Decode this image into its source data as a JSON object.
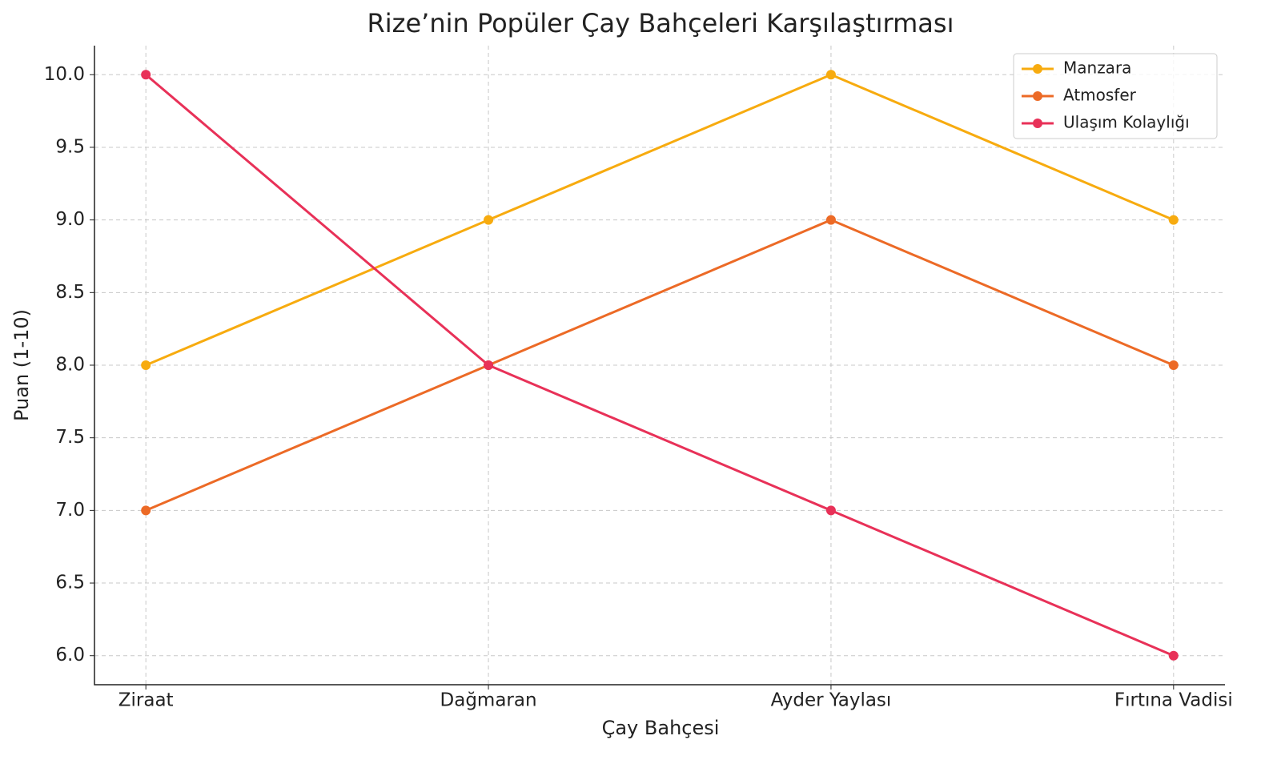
{
  "chart_data": {
    "type": "line",
    "title": "Rize’nin Popüler Çay Bahçeleri Karşılaştırması",
    "x_label": "Çay Bahçesi",
    "y_label": "Puan (1-10)",
    "categories": [
      "Ziraat",
      "Dağmaran",
      "Ayder Yaylası",
      "Fırtına Vadisi"
    ],
    "series": [
      {
        "name": "Manzara",
        "color": "#f7ab0f",
        "values": [
          8,
          9,
          10,
          9
        ]
      },
      {
        "name": "Atmosfer",
        "color": "#ec6a26",
        "values": [
          7,
          8,
          9,
          8
        ]
      },
      {
        "name": "Ulaşım Kolaylığı",
        "color": "#e83158",
        "values": [
          10,
          8,
          7,
          6
        ]
      }
    ],
    "ylim": [
      5.8,
      10.2
    ],
    "yticks": [
      {
        "value": 6,
        "label": "6.0"
      },
      6.5,
      {
        "value": 7,
        "label": "7.0"
      },
      7.5,
      {
        "value": 8,
        "label": "8.0"
      },
      8.5,
      {
        "value": 9,
        "label": "9.0"
      },
      9.5,
      {
        "value": 10,
        "label": "10.0"
      }
    ],
    "grid": true,
    "legend": "upper right"
  }
}
